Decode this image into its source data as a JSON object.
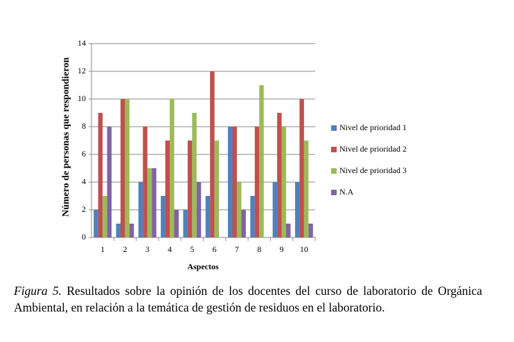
{
  "chart_data": {
    "type": "bar",
    "x_label": "Aspectos",
    "y_label": "Número de personas que respondieron",
    "categories": [
      "1",
      "2",
      "3",
      "4",
      "5",
      "6",
      "7",
      "8",
      "9",
      "10"
    ],
    "series": [
      {
        "name": "Nivel de prioridad 1",
        "color": "#4f81bd",
        "values": [
          2,
          1,
          4,
          3,
          2,
          3,
          8,
          3,
          4,
          4
        ]
      },
      {
        "name": "Nivel de prioridad 2",
        "color": "#c0504d",
        "values": [
          9,
          10,
          8,
          7,
          7,
          12,
          8,
          8,
          9,
          10
        ]
      },
      {
        "name": "Nivel de prioridad 3",
        "color": "#9bbb59",
        "values": [
          3,
          10,
          5,
          10,
          9,
          7,
          4,
          11,
          8,
          7
        ]
      },
      {
        "name": "N.A",
        "color": "#8064a2",
        "values": [
          8,
          1,
          5,
          2,
          4,
          0,
          2,
          0,
          1,
          1
        ]
      }
    ],
    "ylim": [
      0,
      14
    ],
    "yticks": [
      0,
      2,
      4,
      6,
      8,
      10,
      12,
      14
    ],
    "grid": true,
    "legend": "right"
  },
  "caption": {
    "label": "Figura 5.",
    "text": "Resultados sobre la opinión de los docentes del curso de laboratorio de Orgánica Ambiental, en relación a la temática de gestión de residuos en el laboratorio."
  }
}
